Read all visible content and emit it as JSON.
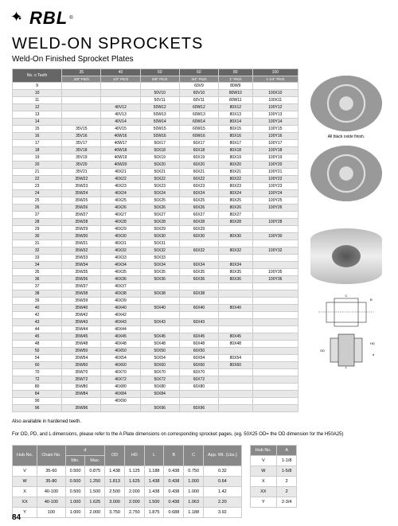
{
  "logo": "RBL",
  "logoSub": "®",
  "title": "WELD-ON SPROCKETS",
  "subtitle": "Weld-On Finished Sprocket Plates",
  "mainHeader": {
    "teeth": "No. o Teeth",
    "cols": [
      "35",
      "40",
      "50",
      "60",
      "80",
      "100"
    ],
    "pitches": [
      "3/8\" Pitch",
      "1/2\" Pitch",
      "5/8\" Pitch",
      "3/4\" Pitch",
      "1\" Pitch",
      "1-1/4\" Pitch"
    ]
  },
  "rows": [
    [
      "9",
      "",
      "",
      "",
      "60V9",
      "80W9",
      ""
    ],
    [
      "10",
      "",
      "",
      "50V10",
      "60V10",
      "80W10",
      "100X10"
    ],
    [
      "11",
      "",
      "",
      "50V11",
      "60V11",
      "80W11",
      "100X11"
    ],
    [
      "12",
      "",
      "40V12",
      "50W12",
      "60W12",
      "80X12",
      "100Y12"
    ],
    [
      "13",
      "",
      "40V13",
      "50W13",
      "60W13",
      "80X13",
      "100Y13"
    ],
    [
      "14",
      "",
      "40V14",
      "50W14",
      "60W14",
      "80X14",
      "100Y14"
    ],
    [
      "15",
      "35V15",
      "40V15",
      "50W15",
      "60W15",
      "80X15",
      "100Y15"
    ],
    [
      "16",
      "35V16",
      "40W16",
      "50W16",
      "60W16",
      "80X16",
      "100Y16"
    ],
    [
      "17",
      "35V17",
      "40W17",
      "50X17",
      "60X17",
      "80X17",
      "100Y17"
    ],
    [
      "18",
      "35V18",
      "40W18",
      "50X18",
      "60X18",
      "80X18",
      "100Y18"
    ],
    [
      "19",
      "35V19",
      "40W19",
      "50X19",
      "60X19",
      "80X19",
      "100Y19"
    ],
    [
      "20",
      "35V20",
      "40W20",
      "50X20",
      "60X20",
      "80X20",
      "100Y20"
    ],
    [
      "21",
      "35V21",
      "40X21",
      "50X21",
      "60X21",
      "80X21",
      "100Y21"
    ],
    [
      "22",
      "35W22",
      "40X22",
      "50X22",
      "60X22",
      "80X22",
      "100Y22"
    ],
    [
      "23",
      "35W23",
      "40X23",
      "50X23",
      "60X23",
      "80X23",
      "100Y23"
    ],
    [
      "24",
      "35W24",
      "40X24",
      "50X24",
      "60X24",
      "80X24",
      "100Y24"
    ],
    [
      "25",
      "35W25",
      "40X25",
      "50X25",
      "60X25",
      "80X25",
      "100Y25"
    ],
    [
      "26",
      "35W26",
      "40X26",
      "50X26",
      "60X26",
      "80X26",
      "100Y26"
    ],
    [
      "27",
      "35W27",
      "40X27",
      "50X27",
      "60X27",
      "80X27",
      ""
    ],
    [
      "28",
      "35W28",
      "40X28",
      "50X28",
      "60X28",
      "80X28",
      "100Y28"
    ],
    [
      "29",
      "35W29",
      "40X29",
      "50X29",
      "60X29",
      "",
      ""
    ],
    [
      "30",
      "35W30",
      "40X30",
      "50X30",
      "60X30",
      "80X30",
      "100Y30"
    ],
    [
      "31",
      "35W31",
      "40X31",
      "50X31",
      "",
      "",
      ""
    ],
    [
      "32",
      "35W32",
      "40X32",
      "50X32",
      "60X32",
      "80X32",
      "100Y32"
    ],
    [
      "33",
      "35W33",
      "40X33",
      "50X33",
      "",
      "",
      ""
    ],
    [
      "34",
      "35W34",
      "40X34",
      "50X34",
      "60X34",
      "80X34",
      ""
    ],
    [
      "35",
      "35W35",
      "40X35",
      "50X35",
      "60X35",
      "80X35",
      "100Y35"
    ],
    [
      "36",
      "35W36",
      "40X36",
      "50X36",
      "60X36",
      "80X36",
      "100Y36"
    ],
    [
      "37",
      "35W37",
      "40X37",
      "",
      "",
      "",
      ""
    ],
    [
      "38",
      "35W38",
      "40X38",
      "50X38",
      "60X38",
      "",
      ""
    ],
    [
      "39",
      "35W39",
      "40X39",
      "",
      "",
      "",
      ""
    ],
    [
      "40",
      "35W40",
      "40X40",
      "50X40",
      "60X40",
      "80X40",
      ""
    ],
    [
      "42",
      "35W42",
      "40X42",
      "",
      "",
      "",
      ""
    ],
    [
      "43",
      "35W43",
      "40X43",
      "50X43",
      "60X43",
      "",
      ""
    ],
    [
      "44",
      "35W44",
      "40X44",
      "",
      "",
      "",
      ""
    ],
    [
      "45",
      "35W45",
      "40X45",
      "50X45",
      "60X45",
      "80X45",
      ""
    ],
    [
      "48",
      "35W48",
      "40X48",
      "50X48",
      "60X48",
      "80X48",
      ""
    ],
    [
      "50",
      "35W50",
      "40X50",
      "50X50",
      "60X50",
      "",
      ""
    ],
    [
      "54",
      "35W54",
      "40X54",
      "50X54",
      "60X54",
      "80X54",
      ""
    ],
    [
      "60",
      "35W60",
      "40X60",
      "50X60",
      "60X60",
      "80X60",
      ""
    ],
    [
      "70",
      "35W70",
      "40X70",
      "50X70",
      "60X70",
      "",
      ""
    ],
    [
      "72",
      "35W72",
      "40X72",
      "50X72",
      "60X72",
      "",
      ""
    ],
    [
      "80",
      "35W80",
      "40X80",
      "50X80",
      "60X80",
      "",
      ""
    ],
    [
      "84",
      "35W84",
      "40X84",
      "50X84",
      "",
      "",
      ""
    ],
    [
      "90",
      "",
      "40X90",
      "",
      "",
      "",
      ""
    ],
    [
      "96",
      "35W96",
      "",
      "50X96",
      "60X96",
      "",
      ""
    ]
  ],
  "note1": "Also available in hardened teeth.",
  "note2": "For OD, PD, and L dimensions, please refer to the A Plate dimensions on corresponding sprocket pages. (eg. 50X25 OD= the OD dimension for the H50A25)",
  "dimHeader": [
    "Hub No.",
    "Chain No.",
    "d",
    "",
    "OD",
    "HD",
    "L",
    "B",
    "C",
    "App. Wt. (Lbs.)"
  ],
  "dimSubHeader": [
    "",
    "",
    "Min.",
    "Max.",
    "",
    "",
    "",
    "",
    "",
    ""
  ],
  "dimRows": [
    [
      "V",
      "35-60",
      "0.500",
      "0.875",
      "1.438",
      "1.125",
      "1.188",
      "0.438",
      "0.750",
      "0.32"
    ],
    [
      "W",
      "35-80",
      "0.500",
      "1.250",
      "1.813",
      "1.625",
      "1.438",
      "0.438",
      "1.000",
      "0.64"
    ],
    [
      "X",
      "40-100",
      "0.500",
      "1.500",
      "2.500",
      "2.000",
      "1.438",
      "0.438",
      "1.000",
      "1.42"
    ],
    [
      "XX",
      "40-100",
      "1.000",
      "1.625",
      "3.000",
      "2.000",
      "1.500",
      "0.438",
      "1.063",
      "2.20"
    ],
    [
      "Y",
      "100",
      "1.000",
      "2.000",
      "3.750",
      "2.750",
      "1.875",
      "0.688",
      "1.188",
      "3.92"
    ]
  ],
  "aHeader": [
    "Hub No.",
    "A"
  ],
  "aRows": [
    [
      "V",
      "1-1/8"
    ],
    [
      "W",
      "1-5/8"
    ],
    [
      "X",
      "2"
    ],
    [
      "XX",
      "2"
    ],
    [
      "Y",
      "2-3/4"
    ]
  ],
  "pageNum": "84",
  "caption1": "All black oxide finish.",
  "colors": {
    "headerBg": "#666",
    "subHeaderBg": "#888",
    "altRow": "#e8e8e8",
    "border": "#ccc"
  }
}
